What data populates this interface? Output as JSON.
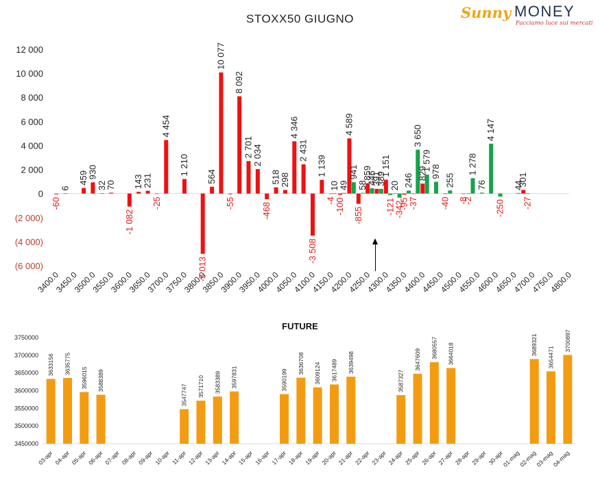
{
  "title": "STOXX50 GIUGNO",
  "logo": {
    "brand_a": "Sunny",
    "brand_b": "MONEY",
    "tagline": "Facciamo luce sui mercati"
  },
  "colors": {
    "red": "#ee1111",
    "green": "#16a34a",
    "orange": "#f39c12",
    "neg_label": "#e21b1b"
  },
  "chart_data": [
    {
      "type": "bar",
      "title": "STOXX50 GIUGNO",
      "xlabel": "",
      "ylabel": "",
      "ylim": [
        -6000,
        12000
      ],
      "yticks": [
        -6000,
        -4000,
        -2000,
        0,
        2000,
        4000,
        6000,
        8000,
        10000,
        12000
      ],
      "ytick_labels": [
        "(6 000)",
        "(4 000)",
        "(2 000)",
        "0",
        "2 000",
        "4 000",
        "6 000",
        "8 000",
        "10 000",
        "12 000"
      ],
      "x_ticks": [
        "3400.0",
        "3450.0",
        "3500.0",
        "3550.0",
        "3600.0",
        "3650.0",
        "3700.0",
        "3750.0",
        "3800.0",
        "3850.0",
        "3900.0",
        "3950.0",
        "4000.0",
        "4050.0",
        "4100.0",
        "4150.0",
        "4200.0",
        "4250.0",
        "4300.0",
        "4350.0",
        "4400.0",
        "4450.0",
        "4500.0",
        "4550.0",
        "4600.0",
        "4650.0",
        "4700.0",
        "4750.0",
        "4800.0"
      ],
      "bars": [
        {
          "strike": 3400,
          "series": "red",
          "value": -60,
          "label": "-60"
        },
        {
          "strike": 3425,
          "series": "red",
          "value": 6,
          "label": "6"
        },
        {
          "strike": 3475,
          "series": "red",
          "value": 459,
          "label": "459"
        },
        {
          "strike": 3500,
          "series": "red",
          "value": 930,
          "label": "930"
        },
        {
          "strike": 3525,
          "series": "red",
          "value": 32,
          "label": "32"
        },
        {
          "strike": 3550,
          "series": "red",
          "value": 70,
          "label": "70"
        },
        {
          "strike": 3600,
          "series": "red",
          "value": -1082,
          "label": "-1 082"
        },
        {
          "strike": 3625,
          "series": "red",
          "value": 143,
          "label": "143"
        },
        {
          "strike": 3650,
          "series": "red",
          "value": 231,
          "label": "231"
        },
        {
          "strike": 3675,
          "series": "red",
          "value": -25,
          "label": "-25"
        },
        {
          "strike": 3700,
          "series": "red",
          "value": 4454,
          "label": "4 454"
        },
        {
          "strike": 3750,
          "series": "red",
          "value": 1210,
          "label": "1 210"
        },
        {
          "strike": 3800,
          "series": "red",
          "value": -5013,
          "label": "-5 013"
        },
        {
          "strike": 3825,
          "series": "red",
          "value": 564,
          "label": "564"
        },
        {
          "strike": 3850,
          "series": "red",
          "value": 10077,
          "label": "10 077"
        },
        {
          "strike": 3875,
          "series": "red",
          "value": -55,
          "label": "-55"
        },
        {
          "strike": 3900,
          "series": "red",
          "value": 8092,
          "label": "8 092"
        },
        {
          "strike": 3925,
          "series": "red",
          "value": 2701,
          "label": "2 701"
        },
        {
          "strike": 3950,
          "series": "red",
          "value": 2034,
          "label": "2 034"
        },
        {
          "strike": 3975,
          "series": "red",
          "value": -468,
          "label": "-468"
        },
        {
          "strike": 4000,
          "series": "red",
          "value": 518,
          "label": "518"
        },
        {
          "strike": 4025,
          "series": "red",
          "value": 298,
          "label": "298"
        },
        {
          "strike": 4050,
          "series": "red",
          "value": 4346,
          "label": "4 346"
        },
        {
          "strike": 4075,
          "series": "red",
          "value": 2431,
          "label": "2 431"
        },
        {
          "strike": 4100,
          "series": "red",
          "value": -3508,
          "label": "-3 508"
        },
        {
          "strike": 4125,
          "series": "red",
          "value": 1139,
          "label": "1 139"
        },
        {
          "strike": 4150,
          "series": "red",
          "value": -4,
          "label": "-4"
        },
        {
          "strike": 4160,
          "series": "red",
          "value": 10,
          "label": "10"
        },
        {
          "strike": 4175,
          "series": "red",
          "value": -100,
          "label": "-100"
        },
        {
          "strike": 4185,
          "series": "red",
          "value": 49,
          "label": "49"
        },
        {
          "strike": 4200,
          "series": "red",
          "value": 4589,
          "label": "4 589"
        },
        {
          "strike": 4212,
          "series": "green",
          "value": 941,
          "label": "941"
        },
        {
          "strike": 4225,
          "series": "red",
          "value": -855,
          "label": "-855"
        },
        {
          "strike": 4237,
          "series": "green",
          "value": 58,
          "label": "58"
        },
        {
          "strike": 4250,
          "series": "red",
          "value": 859,
          "label": "859"
        },
        {
          "strike": 4262,
          "series": "green",
          "value": 446,
          "label": "446"
        },
        {
          "strike": 4275,
          "series": "red",
          "value": 391,
          "label": "391"
        },
        {
          "strike": 4287,
          "series": "green",
          "value": 389,
          "label": "389"
        },
        {
          "strike": 4300,
          "series": "red",
          "value": 1151,
          "label": "1 151"
        },
        {
          "strike": 4312,
          "series": "green",
          "value": -121,
          "label": "-121"
        },
        {
          "strike": 4325,
          "series": "red",
          "value": 20,
          "label": "20"
        },
        {
          "strike": 4337,
          "series": "green",
          "value": -342,
          "label": "-342"
        },
        {
          "strike": 4350,
          "series": "red",
          "value": -95,
          "label": "-95"
        },
        {
          "strike": 4362,
          "series": "green",
          "value": 246,
          "label": "246"
        },
        {
          "strike": 4375,
          "series": "red",
          "value": -37,
          "label": "-37"
        },
        {
          "strike": 4387,
          "series": "green",
          "value": 3650,
          "label": "3 650"
        },
        {
          "strike": 4400,
          "series": "red",
          "value": 829,
          "label": "829"
        },
        {
          "strike": 4412,
          "series": "green",
          "value": 1579,
          "label": "1 579"
        },
        {
          "strike": 4437,
          "series": "green",
          "value": 978,
          "label": "978"
        },
        {
          "strike": 4462,
          "series": "red",
          "value": -40,
          "label": "-40"
        },
        {
          "strike": 4475,
          "series": "green",
          "value": 255,
          "label": "255"
        },
        {
          "strike": 4512,
          "series": "red",
          "value": -8,
          "label": "-8"
        },
        {
          "strike": 4525,
          "series": "green",
          "value": -2,
          "label": "-2"
        },
        {
          "strike": 4537,
          "series": "green",
          "value": 1278,
          "label": "1 278"
        },
        {
          "strike": 4562,
          "series": "green",
          "value": 76,
          "label": "76"
        },
        {
          "strike": 4587,
          "series": "green",
          "value": 4147,
          "label": "4 147"
        },
        {
          "strike": 4612,
          "series": "green",
          "value": -250,
          "label": "-250"
        },
        {
          "strike": 4662,
          "series": "red",
          "value": 44,
          "label": "44"
        },
        {
          "strike": 4675,
          "series": "red",
          "value": 301,
          "label": "301"
        },
        {
          "strike": 4687,
          "series": "red",
          "value": -27,
          "label": "-27"
        }
      ]
    },
    {
      "type": "bar",
      "title": "FUTURE",
      "xlabel": "",
      "ylabel": "",
      "ylim": [
        3450000,
        3750000
      ],
      "yticks": [
        3450000,
        3500000,
        3550000,
        3600000,
        3650000,
        3700000,
        3750000
      ],
      "ytick_labels": [
        "3450000",
        "3500000",
        "3550000",
        "3600000",
        "3650000",
        "3700000",
        "3750000"
      ],
      "categories": [
        "03-apr",
        "04-apr",
        "05-apr",
        "06-apr",
        "07-apr",
        "08-apr",
        "09-apr",
        "10-apr",
        "11-apr",
        "12-apr",
        "13-apr",
        "14-apr",
        "15-apr",
        "16-apr",
        "17-apr",
        "18-apr",
        "19-apr",
        "20-apr",
        "21-apr",
        "22-apr",
        "23-apr",
        "24-apr",
        "25-apr",
        "26-apr",
        "27-apr",
        "28-apr",
        "29-apr",
        "30-apr",
        "01-mag",
        "02-mag",
        "03-mag",
        "04-mag"
      ],
      "values": [
        3633156,
        3635775,
        3596015,
        3588389,
        null,
        null,
        null,
        null,
        3547747,
        3571710,
        3583389,
        3597831,
        null,
        null,
        3590199,
        3636708,
        3609124,
        3617489,
        3639498,
        null,
        null,
        3587327,
        3647609,
        3680557,
        3664018,
        null,
        null,
        null,
        null,
        3689321,
        3654471,
        3700897
      ]
    }
  ]
}
